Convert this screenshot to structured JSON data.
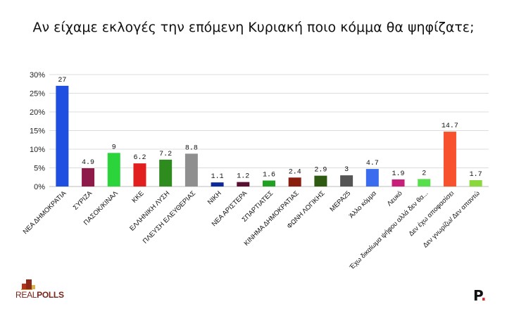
{
  "chart_data": {
    "type": "bar",
    "title": "Αν είχαμε εκλογές την επόμενη Κυριακή ποιο κόμμα θα ψηφίζατε;",
    "ylim": [
      0,
      30
    ],
    "yticks": [
      "0%",
      "5%",
      "10%",
      "15%",
      "20%",
      "25%",
      "30%"
    ],
    "grid": true,
    "categories": [
      "ΝΕΑ ΔΗΜΟΚΡΑΤΙΑ",
      "ΣΥΡΙΖΑ",
      "ΠΑΣΟΚ/ΚΙΝΑΛ",
      "ΚΚΕ",
      "ΕΛΛΗΝΙΚΗ ΛΥΣΗ",
      "ΠΛΕΥΣΗ ΕΛΕΥΘΕΡΙΑΣ",
      "ΝΙΚΗ",
      "ΝΕΑ ΑΡΙΣΤΕΡΑ",
      "ΣΠΑΡΤΙΑΤΕΣ",
      "ΚΙΝΗΜΑ ΔΗΜΟΚΡΑΤΙΑΣ",
      "ΦΩΝΗ ΛΟΓΙΚΗΣ",
      "ΜΕΡΑ25",
      "Άλλο κόμμα",
      "Λευκό",
      "Έχω δικαίωμα ψήφου αλλά δεν θα...",
      "Δεν έχω αποφασίσει",
      "Δεν γνωρίζω/ Δεν απαντώ"
    ],
    "values": [
      27,
      4.9,
      9,
      6.2,
      7.2,
      8.8,
      1.1,
      1.2,
      1.6,
      2.4,
      2.9,
      3,
      4.7,
      1.9,
      2,
      14.7,
      1.7
    ],
    "value_labels": [
      "27",
      "4.9",
      "9",
      "6.2",
      "7.2",
      "8.8",
      "1.1",
      "1.2",
      "1.6",
      "2.4",
      "2.9",
      "3",
      "4.7",
      "1.9",
      "2",
      "14.7",
      "1.7"
    ],
    "colors": [
      "#1f4fe0",
      "#8e1a4a",
      "#2bd43a",
      "#e11f1f",
      "#2e8b1e",
      "#8f8f8f",
      "#0d2a9a",
      "#5a1030",
      "#22a022",
      "#8a1f10",
      "#2f5a12",
      "#555555",
      "#3b6cf0",
      "#c8207a",
      "#57e04c",
      "#f8512e",
      "#8ad83b"
    ]
  },
  "logos": {
    "left": "REALPOLLS",
    "left_a": "REAL",
    "left_b": "POLLS",
    "right": "P.",
    "right_main": "P",
    "right_dot": "."
  }
}
